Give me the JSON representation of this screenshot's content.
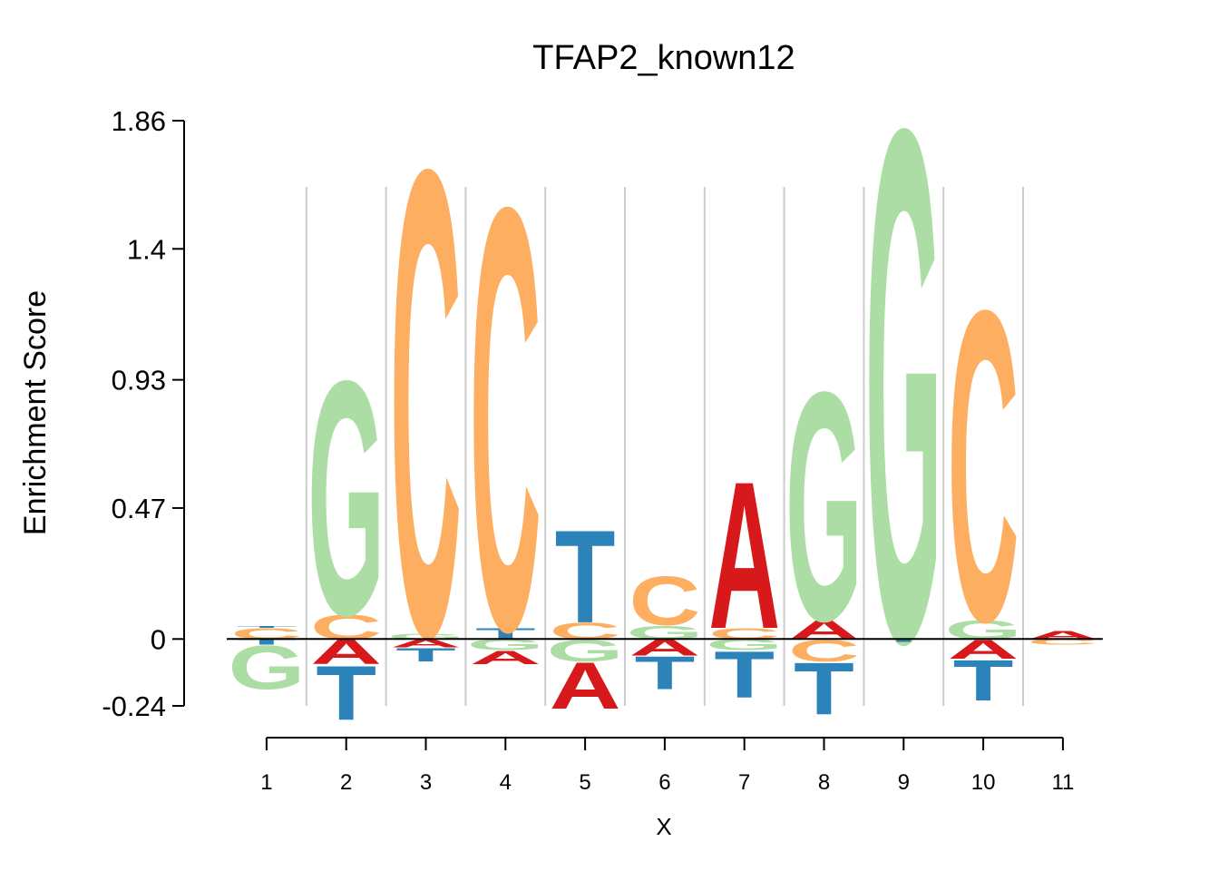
{
  "chart_data": {
    "type": "sequence-logo",
    "title": "TFAP2_known12",
    "xlabel": "X",
    "ylabel": "Enrichment Score",
    "ylim": [
      -0.24,
      1.86
    ],
    "yticks": [
      "1.86",
      "1.4",
      "0.93",
      "0.47",
      "0",
      "-0.24"
    ],
    "ytick_values": [
      1.86,
      1.4,
      0.93,
      0.47,
      0,
      -0.24
    ],
    "positions": [
      "1",
      "2",
      "3",
      "4",
      "5",
      "6",
      "7",
      "8",
      "9",
      "10",
      "11"
    ],
    "colors": {
      "A": "#d7191c",
      "C": "#fdae61",
      "G": "#abdda4",
      "T": "#2b83ba"
    },
    "grid": "vertical separators",
    "columns": [
      {
        "pos": 1,
        "above": [
          {
            "l": "T",
            "v": 0.006
          },
          {
            "l": "C",
            "v": 0.04
          }
        ],
        "below": [
          {
            "l": "T",
            "v": 0.02
          },
          {
            "l": "G",
            "v": 0.16
          }
        ]
      },
      {
        "pos": 2,
        "above": [
          {
            "l": "G",
            "v": 0.86
          },
          {
            "l": "C",
            "v": 0.09
          }
        ],
        "below": [
          {
            "l": "A",
            "v": 0.09
          },
          {
            "l": "T",
            "v": 0.2
          }
        ]
      },
      {
        "pos": 3,
        "above": [
          {
            "l": "C",
            "v": 1.71
          },
          {
            "l": "G",
            "v": 0.02
          }
        ],
        "below": [
          {
            "l": "A",
            "v": 0.03
          },
          {
            "l": "T",
            "v": 0.05
          }
        ]
      },
      {
        "pos": 4,
        "above": [
          {
            "l": "C",
            "v": 1.55
          },
          {
            "l": "T",
            "v": 0.04
          }
        ],
        "below": [
          {
            "l": "G",
            "v": 0.04
          },
          {
            "l": "A",
            "v": 0.05
          }
        ]
      },
      {
        "pos": 5,
        "above": [
          {
            "l": "T",
            "v": 0.34
          },
          {
            "l": "C",
            "v": 0.06
          }
        ],
        "below": [
          {
            "l": "G",
            "v": 0.08
          },
          {
            "l": "A",
            "v": 0.17
          }
        ]
      },
      {
        "pos": 6,
        "above": [
          {
            "l": "C",
            "v": 0.18
          },
          {
            "l": "G",
            "v": 0.05
          }
        ],
        "below": [
          {
            "l": "A",
            "v": 0.06
          },
          {
            "l": "T",
            "v": 0.12
          }
        ]
      },
      {
        "pos": 7,
        "above": [
          {
            "l": "A",
            "v": 0.54
          },
          {
            "l": "C",
            "v": 0.04
          }
        ],
        "below": [
          {
            "l": "G",
            "v": 0.04
          },
          {
            "l": "T",
            "v": 0.17
          }
        ]
      },
      {
        "pos": 8,
        "above": [
          {
            "l": "G",
            "v": 0.84
          },
          {
            "l": "A",
            "v": 0.07
          }
        ],
        "below": [
          {
            "l": "C",
            "v": 0.08
          },
          {
            "l": "T",
            "v": 0.19
          }
        ]
      },
      {
        "pos": 9,
        "above": [
          {
            "l": "G",
            "v": 1.88
          }
        ],
        "below": [
          {
            "l": "T",
            "v": 0.01
          }
        ]
      },
      {
        "pos": 10,
        "above": [
          {
            "l": "C",
            "v": 1.14
          },
          {
            "l": "G",
            "v": 0.07
          }
        ],
        "below": [
          {
            "l": "A",
            "v": 0.07
          },
          {
            "l": "T",
            "v": 0.15
          }
        ]
      },
      {
        "pos": 11,
        "above": [
          {
            "l": "A",
            "v": 0.03
          }
        ],
        "below": [
          {
            "l": "C",
            "v": 0.02
          }
        ]
      }
    ]
  }
}
